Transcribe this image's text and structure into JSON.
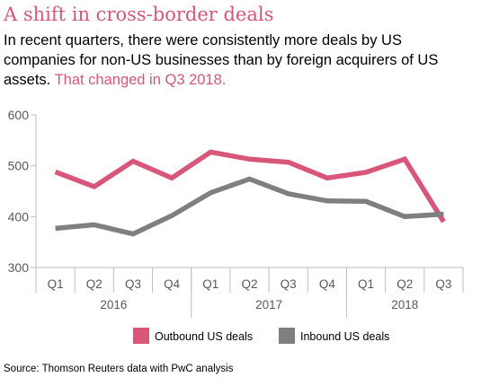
{
  "header": {
    "title": "A shift in cross-border deals",
    "subtitle_main": "In recent quarters, there were consistently more deals by US companies for non-US businesses than by foreign acquirers of US assets. ",
    "subtitle_highlight": "That changed in Q3 2018."
  },
  "source": "Source: Thomson Reuters data with PwC analysis",
  "colors": {
    "outbound": "#d7567a",
    "inbound": "#7f7f7f",
    "highlight": "#d7567a",
    "axis": "#bfbfbf",
    "text": "#595959"
  },
  "chart_data": {
    "type": "line",
    "title": "A shift in cross-border deals",
    "xlabel": "",
    "ylabel": "",
    "ylim": [
      300,
      600
    ],
    "yticks": [
      300,
      400,
      500,
      600
    ],
    "grid": false,
    "legend_position": "bottom",
    "categories": [
      "Q1",
      "Q2",
      "Q3",
      "Q4",
      "Q1",
      "Q2",
      "Q3",
      "Q4",
      "Q1",
      "Q2",
      "Q3"
    ],
    "years": [
      {
        "label": "2016",
        "span": 4
      },
      {
        "label": "2017",
        "span": 4
      },
      {
        "label": "2018",
        "span": 3
      }
    ],
    "series": [
      {
        "name": "Outbound US deals",
        "color": "#d7567a",
        "values": [
          488,
          459,
          509,
          476,
          527,
          513,
          507,
          476,
          487,
          513,
          390
        ]
      },
      {
        "name": "Inbound US deals",
        "color": "#7f7f7f",
        "values": [
          377,
          384,
          366,
          402,
          447,
          474,
          445,
          431,
          430,
          400,
          405
        ]
      }
    ]
  }
}
